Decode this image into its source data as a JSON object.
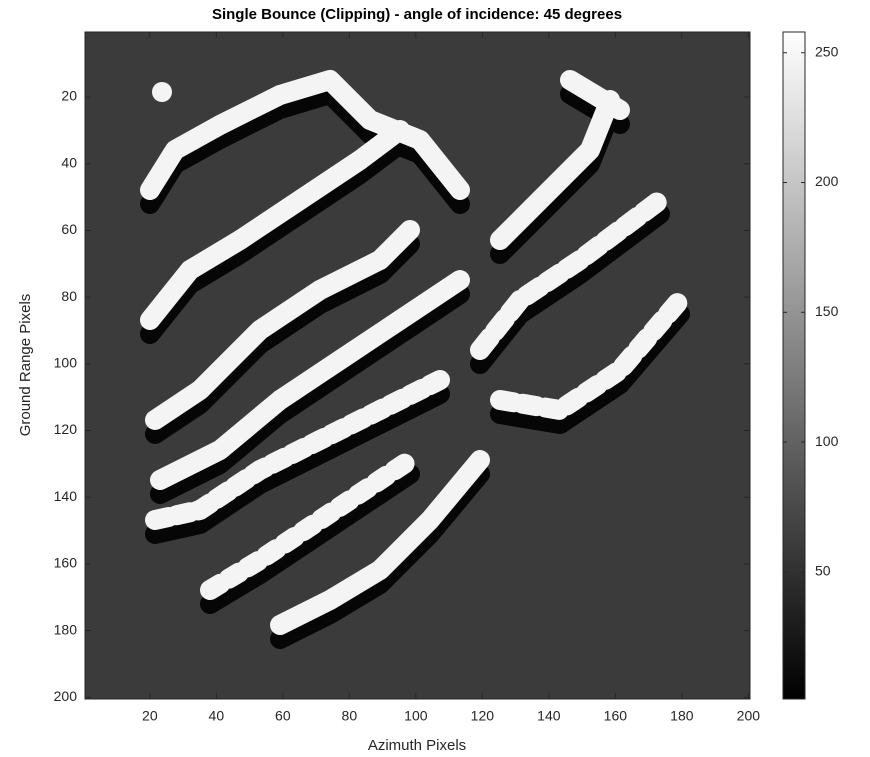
{
  "chart_data": {
    "type": "heatmap",
    "title": "Single Bounce (Clipping) - angle of incidence: 45 degrees",
    "x_label": "Azimuth Pixels",
    "y_label": "Ground Range Pixels",
    "xlim": [
      0.5,
      200.5
    ],
    "xticks": [
      20,
      40,
      60,
      80,
      100,
      120,
      140,
      160,
      180,
      200
    ],
    "ylim": [
      0.5,
      200.5
    ],
    "yticks": [
      20,
      40,
      60,
      80,
      100,
      120,
      140,
      160,
      180,
      200
    ],
    "y_reversed": true,
    "colormap": "gray",
    "clim": [
      1,
      258
    ],
    "colorbar_ticks": [
      50,
      100,
      150,
      200,
      250
    ]
  }
}
